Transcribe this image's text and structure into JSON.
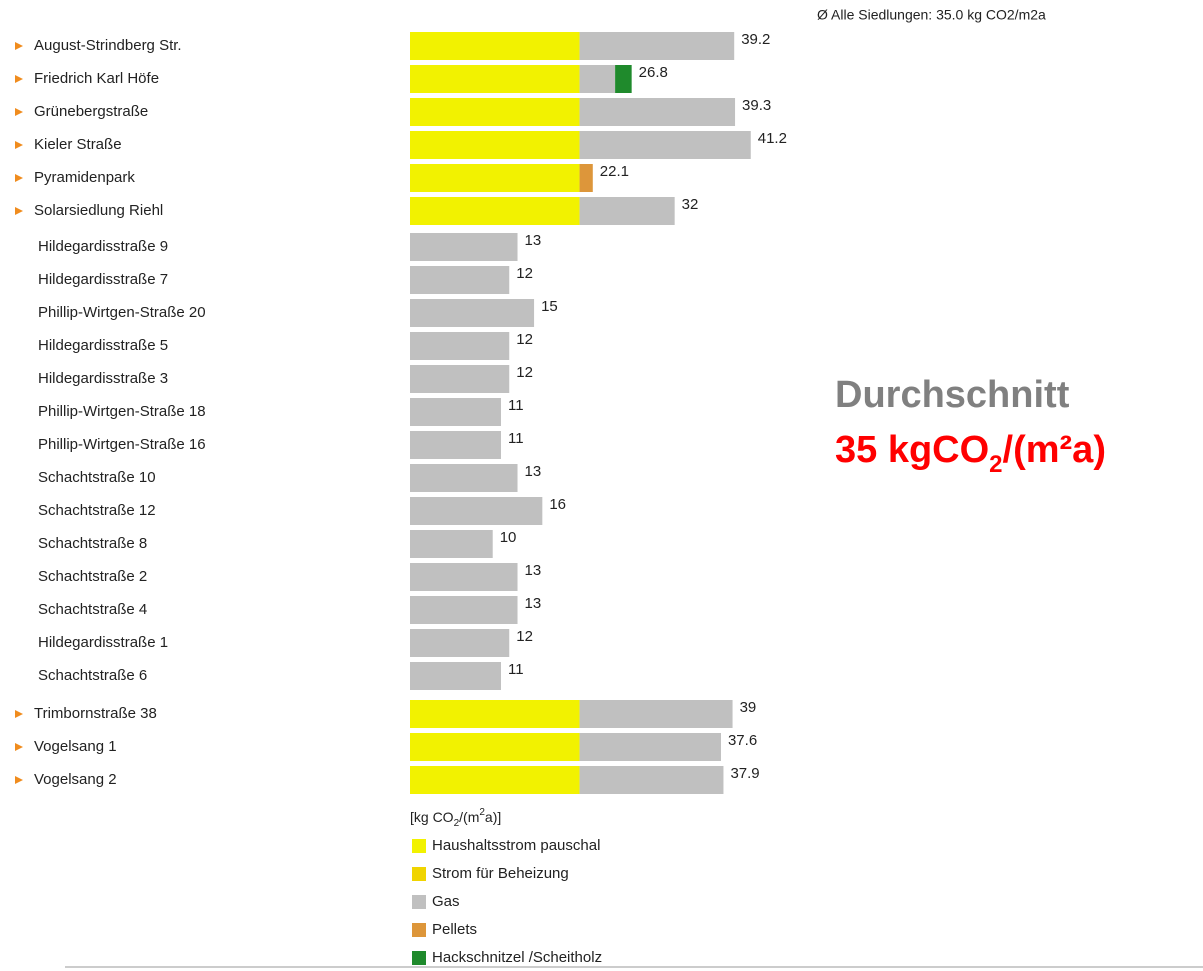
{
  "chart_data": {
    "type": "stacked-bar-horizontal",
    "subtitle": "Ø Alle Siedlungen: 35.0 kg CO2/m2a",
    "categories": [
      "August-Strindberg Str.",
      "Friedrich Karl Höfe",
      "Grünebergstraße",
      "Kieler Straße",
      "Pyramidenpark",
      "Solarsiedlung Riehl",
      "Hildegardisstraße 9",
      "Hildegardisstraße 7",
      "Phillip-Wirtgen-Straße 20",
      "Hildegardisstraße 5",
      "Hildegardisstraße 3",
      "Phillip-Wirtgen-Straße 18",
      "Phillip-Wirtgen-Straße 16",
      "Schachtstraße 10",
      "Schachtstraße 12",
      "Schachtstraße 8",
      "Schachtstraße 2",
      "Schachtstraße 4",
      "Hildegardisstraße 1",
      "Schachtstraße 6",
      "Trimbornstraße 38",
      "Vogelsang 1",
      "Vogelsang 2"
    ],
    "expandable": [
      true,
      true,
      true,
      true,
      true,
      true,
      false,
      false,
      false,
      false,
      false,
      false,
      false,
      false,
      false,
      false,
      false,
      false,
      false,
      false,
      true,
      true,
      true
    ],
    "series": [
      {
        "name": "Haushaltsstrom pauschal",
        "color": "#f2f200",
        "values": [
          20.5,
          20.5,
          20.5,
          20.5,
          20.5,
          20.5,
          null,
          null,
          null,
          null,
          null,
          null,
          null,
          null,
          null,
          null,
          null,
          null,
          null,
          null,
          20.5,
          20.5,
          20.5
        ]
      },
      {
        "name": "Strom für Beheizung",
        "color": "#f0d400",
        "values": [
          null,
          null,
          null,
          null,
          null,
          null,
          null,
          null,
          null,
          null,
          null,
          null,
          null,
          null,
          null,
          null,
          null,
          null,
          null,
          null,
          null,
          null,
          null
        ]
      },
      {
        "name": "Gas",
        "color": "#c0c0c0",
        "values": [
          18.7,
          4.3,
          18.8,
          20.7,
          null,
          11.5,
          13,
          12,
          15,
          12,
          12,
          11,
          11,
          13,
          16,
          10,
          13,
          13,
          12,
          11,
          18.5,
          17.1,
          17.4
        ]
      },
      {
        "name": "Pellets",
        "color": "#dd963a",
        "values": [
          null,
          null,
          null,
          null,
          1.6,
          null,
          null,
          null,
          null,
          null,
          null,
          null,
          null,
          null,
          null,
          null,
          null,
          null,
          null,
          null,
          null,
          null,
          null
        ]
      },
      {
        "name": "Hackschnitzel /Scheitholz",
        "color": "#1f8a2c",
        "values": [
          null,
          2.0,
          null,
          null,
          null,
          null,
          null,
          null,
          null,
          null,
          null,
          null,
          null,
          null,
          null,
          null,
          null,
          null,
          null,
          null,
          null,
          null,
          null
        ]
      }
    ],
    "totals": [
      39.2,
      26.8,
      39.3,
      41.2,
      22.1,
      32,
      13,
      12,
      15,
      12,
      12,
      11,
      11,
      13,
      16,
      10,
      13,
      13,
      12,
      11,
      39,
      37.6,
      37.9
    ],
    "xlim": [
      0,
      48
    ],
    "unit_label_parts": [
      "[kg CO",
      "2",
      "/(m",
      "2",
      "a)]"
    ],
    "annotation": {
      "label": "Durchschnitt",
      "value_parts": [
        "35 kgCO",
        "2",
        "/(m²a)"
      ]
    }
  }
}
